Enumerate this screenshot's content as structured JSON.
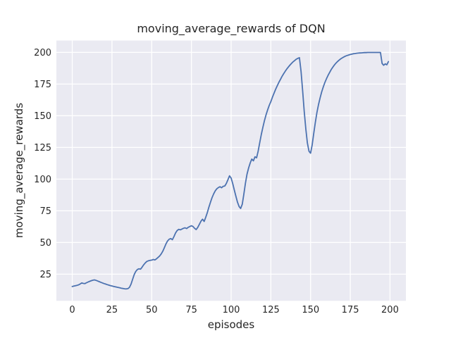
{
  "chart_data": {
    "type": "line",
    "title": "moving_average_rewards of DQN",
    "xlabel": "episodes",
    "ylabel": "moving_average_rewards",
    "style": "seaborn-darkgrid",
    "grid": true,
    "legend": "none",
    "xlim": [
      -10,
      210
    ],
    "ylim": [
      4,
      209.3
    ],
    "xticks": [
      0,
      25,
      50,
      75,
      100,
      125,
      150,
      175,
      200
    ],
    "yticks": [
      25,
      50,
      75,
      100,
      125,
      150,
      175,
      200
    ],
    "colors": {
      "line": "#4C72B0",
      "axes_bg": "#EAEAF2",
      "grid": "#FFFFFF",
      "text": "#262626",
      "figure_bg": "#FFFFFF"
    },
    "x_start": 0,
    "x_step": 1,
    "series": [
      {
        "name": "moving_average_rewards",
        "values": [
          15.3,
          15.6,
          15.9,
          16.2,
          16.6,
          17.3,
          18.1,
          17.7,
          17.6,
          18.3,
          18.9,
          19.4,
          19.9,
          20.3,
          20.5,
          20.1,
          19.6,
          19.1,
          18.6,
          18.1,
          17.6,
          17.2,
          16.8,
          16.4,
          16.0,
          15.7,
          15.4,
          15.1,
          14.8,
          14.5,
          14.2,
          13.9,
          13.7,
          13.5,
          13.4,
          13.6,
          14.6,
          17.2,
          21.0,
          24.8,
          27.2,
          28.7,
          29.3,
          29.0,
          30.6,
          32.5,
          34.0,
          35.1,
          35.6,
          35.9,
          36.1,
          36.6,
          36.3,
          37.1,
          38.2,
          39.3,
          41.0,
          43.2,
          46.0,
          49.0,
          51.2,
          52.6,
          53.1,
          52.2,
          54.6,
          57.5,
          59.4,
          60.4,
          60.0,
          60.6,
          61.2,
          61.6,
          61.0,
          62.0,
          62.6,
          63.2,
          62.6,
          61.2,
          60.2,
          62.0,
          64.3,
          66.8,
          68.4,
          66.6,
          69.8,
          73.6,
          77.8,
          81.8,
          85.4,
          88.4,
          90.8,
          92.4,
          93.4,
          94.0,
          93.2,
          94.3,
          94.6,
          96.6,
          99.6,
          102.6,
          100.8,
          96.4,
          91.4,
          86.4,
          81.8,
          78.4,
          76.9,
          80.2,
          88.0,
          96.8,
          103.8,
          108.8,
          112.8,
          115.8,
          114.4,
          117.6,
          116.8,
          122.0,
          128.8,
          135.2,
          141.0,
          146.2,
          150.8,
          154.8,
          158.2,
          161.2,
          164.6,
          167.8,
          170.8,
          173.6,
          176.2,
          178.6,
          180.9,
          183.0,
          185.0,
          186.8,
          188.4,
          189.9,
          191.3,
          192.5,
          193.6,
          194.6,
          195.3,
          195.8,
          185.0,
          169.5,
          153.5,
          139.5,
          128.5,
          122.0,
          120.4,
          127.0,
          136.0,
          144.8,
          152.4,
          158.8,
          164.2,
          168.8,
          172.8,
          176.2,
          179.2,
          181.8,
          184.2,
          186.4,
          188.3,
          190.0,
          191.5,
          192.8,
          193.9,
          194.9,
          195.7,
          196.4,
          197.0,
          197.5,
          197.9,
          198.3,
          198.6,
          198.9,
          199.1,
          199.3,
          199.4,
          199.5,
          199.6,
          199.7,
          199.8,
          199.8,
          199.9,
          199.9,
          199.9,
          199.9,
          199.9,
          199.9,
          199.9,
          199.9,
          199.9,
          191.3,
          189.8,
          190.9,
          190.2,
          192.7
        ]
      }
    ]
  }
}
